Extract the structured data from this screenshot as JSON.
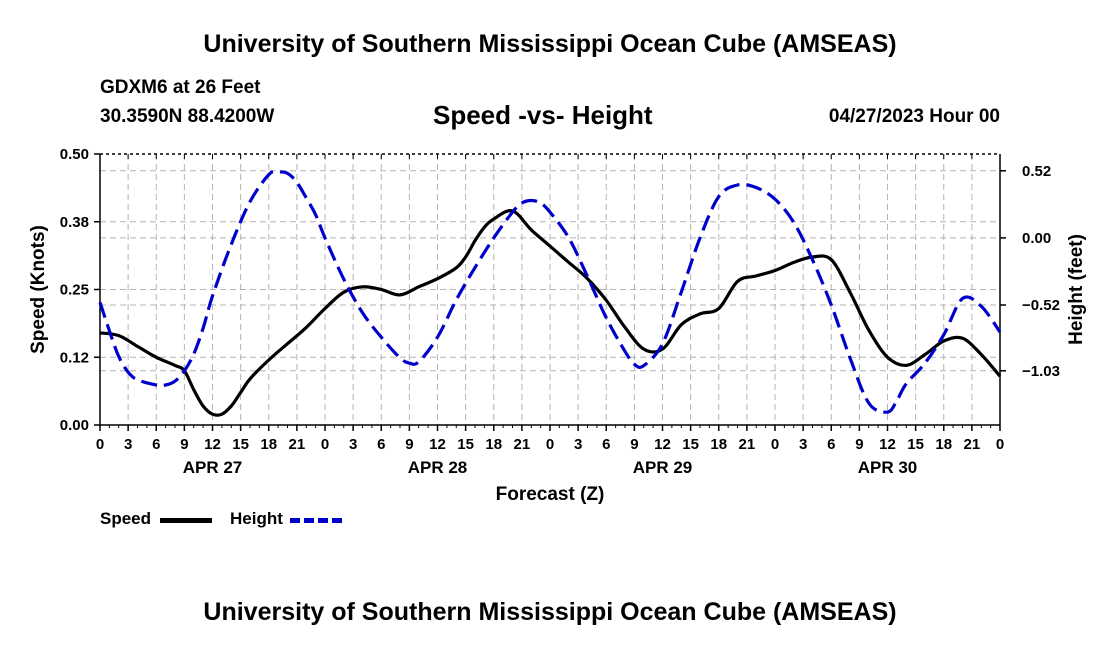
{
  "header": {
    "title": "University of Southern Mississippi Ocean Cube (AMSEAS)",
    "station": "GDXM6 at 26 Feet",
    "coordinates": "30.3590N  88.4200W",
    "chart_title": "Speed -vs- Height",
    "date": "04/27/2023 Hour 00"
  },
  "footer": {
    "title": "University of Southern Mississippi Ocean Cube (AMSEAS)"
  },
  "legend": {
    "speed_label": "Speed",
    "height_label": "Height"
  },
  "colors": {
    "speed": "#000000",
    "height": "#0000cc",
    "grid": "#b4b4b4"
  },
  "chart_data": {
    "type": "line",
    "title": "Speed -vs- Height",
    "xlabel": "Forecast (Z)",
    "ylabel": "Speed (Knots)",
    "y2label": "Height (feet)",
    "x_range_hours": [
      0,
      96
    ],
    "ylim": [
      0,
      0.5
    ],
    "y2lim": [
      -1.45,
      0.65
    ],
    "yticks": [
      "0.00",
      "0.12",
      "0.25",
      "0.38",
      "0.50"
    ],
    "yticks_values": [
      0,
      0.125,
      0.25,
      0.375,
      0.5
    ],
    "y2ticks": [
      "0.52",
      "0.00",
      "−0.52",
      "−1.03"
    ],
    "y2ticks_values": [
      0.52,
      0.0,
      -0.52,
      -1.03
    ],
    "xtick_hours": [
      0,
      3,
      6,
      9,
      12,
      15,
      18,
      21,
      24,
      27,
      30,
      33,
      36,
      39,
      42,
      45,
      48,
      51,
      54,
      57,
      60,
      63,
      66,
      69,
      72,
      75,
      78,
      81,
      84,
      87,
      90,
      93,
      96
    ],
    "xtick_labels": [
      "0",
      "3",
      "6",
      "9",
      "12",
      "15",
      "18",
      "21",
      "0",
      "3",
      "6",
      "9",
      "12",
      "15",
      "18",
      "21",
      "0",
      "3",
      "6",
      "9",
      "12",
      "15",
      "18",
      "21",
      "0",
      "3",
      "6",
      "9",
      "12",
      "15",
      "18",
      "21",
      "0"
    ],
    "day_labels": [
      {
        "label": "APR 27",
        "hour": 12
      },
      {
        "label": "APR 28",
        "hour": 36
      },
      {
        "label": "APR 29",
        "hour": 60
      },
      {
        "label": "APR 30",
        "hour": 84
      }
    ],
    "grid": true,
    "legend_position": "bottom-left",
    "series": [
      {
        "name": "Speed",
        "axis": "left",
        "style": "solid",
        "x": [
          0,
          2,
          4,
          6,
          8,
          9,
          10,
          11,
          12,
          13,
          14,
          15,
          16,
          18,
          20,
          22,
          24,
          26,
          28,
          30,
          32,
          34,
          36,
          38,
          39,
          40,
          41,
          42,
          44,
          46,
          48,
          50,
          52,
          54,
          56,
          58,
          60,
          62,
          64,
          66,
          68,
          70,
          72,
          74,
          76,
          78,
          80,
          82,
          84,
          86,
          88,
          90,
          92,
          94,
          96
        ],
        "y": [
          0.17,
          0.165,
          0.145,
          0.125,
          0.11,
          0.1,
          0.065,
          0.035,
          0.02,
          0.02,
          0.035,
          0.06,
          0.085,
          0.12,
          0.15,
          0.18,
          0.215,
          0.245,
          0.255,
          0.25,
          0.24,
          0.255,
          0.27,
          0.29,
          0.31,
          0.34,
          0.365,
          0.38,
          0.395,
          0.36,
          0.33,
          0.3,
          0.27,
          0.23,
          0.18,
          0.14,
          0.14,
          0.185,
          0.205,
          0.215,
          0.265,
          0.275,
          0.285,
          0.3,
          0.31,
          0.305,
          0.245,
          0.175,
          0.125,
          0.11,
          0.13,
          0.155,
          0.16,
          0.13,
          0.09
        ]
      },
      {
        "name": "Height",
        "axis": "right",
        "style": "dashed",
        "x": [
          0,
          1,
          2,
          3,
          4,
          6,
          7,
          8,
          9,
          10,
          11,
          12,
          14,
          16,
          18,
          19,
          20,
          21,
          22,
          23,
          24,
          26,
          28,
          30,
          32,
          33,
          34,
          36,
          38,
          40,
          42,
          44,
          45,
          46,
          47,
          48,
          50,
          52,
          54,
          56,
          57,
          58,
          60,
          62,
          64,
          66,
          68,
          70,
          72,
          74,
          76,
          78,
          80,
          82,
          84,
          85,
          86,
          88,
          90,
          92,
          94,
          96
        ],
        "y": [
          -0.5,
          -0.72,
          -0.92,
          -1.04,
          -1.1,
          -1.14,
          -1.14,
          -1.11,
          -1.03,
          -0.9,
          -0.7,
          -0.45,
          -0.05,
          0.28,
          0.49,
          0.51,
          0.5,
          0.43,
          0.31,
          0.18,
          0.0,
          -0.32,
          -0.58,
          -0.77,
          -0.93,
          -0.97,
          -0.96,
          -0.77,
          -0.48,
          -0.23,
          0.0,
          0.2,
          0.27,
          0.29,
          0.27,
          0.2,
          0.0,
          -0.3,
          -0.62,
          -0.88,
          -0.98,
          -0.99,
          -0.82,
          -0.42,
          0.0,
          0.32,
          0.41,
          0.39,
          0.3,
          0.12,
          -0.17,
          -0.52,
          -0.93,
          -1.28,
          -1.35,
          -1.26,
          -1.13,
          -0.97,
          -0.75,
          -0.47,
          -0.53,
          -0.73
        ]
      }
    ]
  }
}
